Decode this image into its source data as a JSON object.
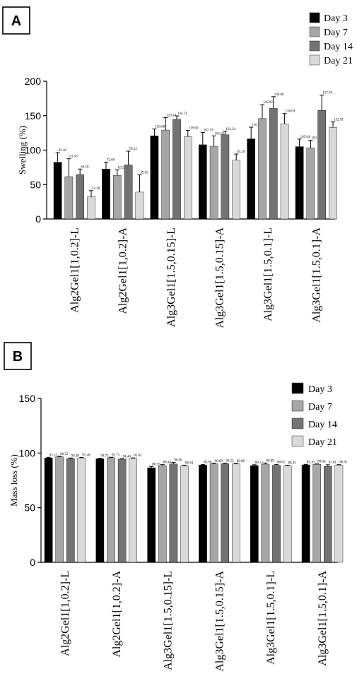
{
  "chart_data": [
    {
      "panel": "A",
      "type": "bar",
      "ylabel": "Swelling (%)",
      "ylim": [
        0,
        200
      ],
      "yticks": [
        0,
        50,
        100,
        150,
        200
      ],
      "legend_position": "top-right",
      "categories": [
        "Alg2Gel1[1,0.2]-L",
        "Alg2Gel1[1,0.2]-A",
        "Alg3Gel1[1.5,0.15]-L",
        "Alg3Gel1[1.5,0.15]-A",
        "Alg3Gel1[1.5,0.1]-L",
        "Alg3Gel1[1.5,0.1]-A"
      ],
      "series": [
        {
          "name": "Day 3",
          "color": "#000000",
          "values": [
            82.38,
            72.6,
            120.68,
            107.79,
            116.3,
            105.04
          ],
          "labels": [
            "82.38",
            "72.60",
            "120.68",
            "107.79",
            "116.30",
            "105.04"
          ],
          "errors": [
            14,
            10,
            10,
            18,
            17,
            11
          ]
        },
        {
          "name": "Day 7",
          "color": "#a6a6a6",
          "values": [
            61.5,
            63.22,
            129.14,
            105.65,
            145.92,
            103.33
          ],
          "labels": [
            "61.50",
            "63.22",
            "129.14",
            "105.65",
            "145.92",
            "103.33"
          ],
          "errors": [
            26,
            8,
            18,
            15,
            20,
            11
          ]
        },
        {
          "name": "Day 14",
          "color": "#737373",
          "values": [
            64.5,
            78.52,
            144.74,
            122.24,
            160.6,
            157.76
          ],
          "labels": [
            "64.50",
            "78.52",
            "144.74",
            "122.24",
            "160.60",
            "157.76"
          ],
          "errors": [
            8,
            20,
            5,
            5,
            17,
            22
          ]
        },
        {
          "name": "Day 21",
          "color": "#d9d9d9",
          "values": [
            32.28,
            39.05,
            119.6,
            85.29,
            138.09,
            132.91
          ],
          "labels": [
            "32.28",
            "39.05",
            "119.60",
            "85.29",
            "138.09",
            "132.91"
          ],
          "errors": [
            9,
            25,
            9,
            9,
            15,
            8
          ]
        }
      ]
    },
    {
      "panel": "B",
      "type": "bar",
      "ylabel": "Mass loss (%)",
      "ylim": [
        0,
        150
      ],
      "yticks": [
        0,
        50,
        100,
        150
      ],
      "legend_position": "top-right",
      "categories": [
        "Alg2Gel1[1,0.2]-L",
        "Alg2Gel1[1,0.2]-A",
        "Alg3Gel1[1.5,0.15]-L",
        "Alg3Gel1[1.5,0.15]-A",
        "Alg3Gel1[1.5,0.1]-L",
        "Alg3Gel1[1.5,0.1]-A"
      ],
      "series": [
        {
          "name": "Day 3",
          "color": "#000000",
          "values": [
            95.53,
            94.75,
            86.55,
            88.96,
            88.53,
            89.16
          ],
          "labels": [
            "95.53",
            "94.75",
            "86.55",
            "88.96",
            "88.53",
            "89.16"
          ],
          "errors": [
            0.6,
            0.5,
            1.2,
            0.5,
            0.8,
            0.5
          ]
        },
        {
          "name": "Day 7",
          "color": "#a6a6a6",
          "values": [
            96.52,
            95.75,
            88.44,
            90.09,
            89.89,
            89.66
          ],
          "labels": [
            "96.52",
            "95.75",
            "88.44",
            "90.09",
            "89.89",
            "89.66"
          ],
          "errors": [
            0.5,
            0.4,
            1,
            0.5,
            1,
            0.4
          ]
        },
        {
          "name": "Day 14",
          "color": "#737373",
          "values": [
            94.99,
            94.44,
            90.0,
            90.22,
            88.81,
            87.81
          ],
          "labels": [
            "94.99",
            "94.44",
            "90.00",
            "90.22",
            "88.81",
            "87.81"
          ],
          "errors": [
            0.5,
            0.4,
            1.5,
            0.5,
            0.8,
            1.5
          ]
        },
        {
          "name": "Day 21",
          "color": "#d9d9d9",
          "values": [
            95.48,
            95.03,
            88.44,
            89.98,
            88.35,
            88.91
          ],
          "labels": [
            "95.48",
            "95.03",
            "88.44",
            "89.98",
            "88.35",
            "88.91"
          ],
          "errors": [
            0.5,
            0.5,
            0.5,
            0.5,
            0.5,
            0.5
          ]
        }
      ]
    }
  ]
}
